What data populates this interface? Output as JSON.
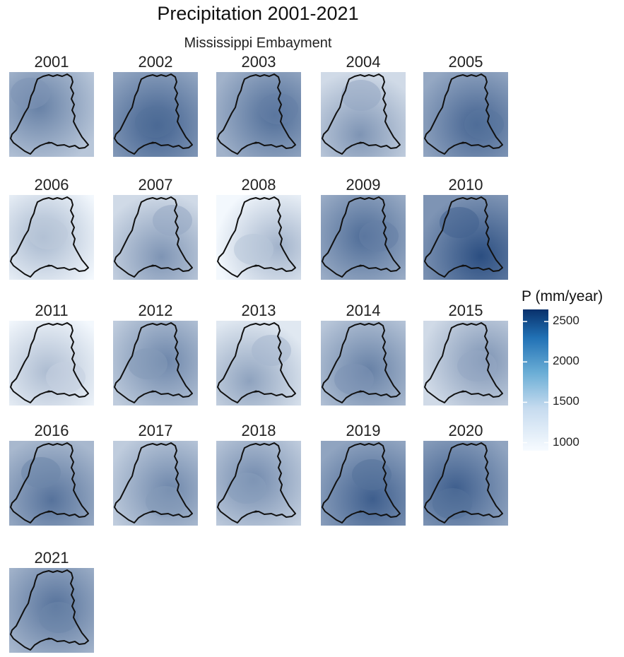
{
  "title": "Precipitation 2001-2021",
  "subtitle": "Mississippi Embayment",
  "legend": {
    "title": "P (mm/year)",
    "range": [
      900,
      2650
    ],
    "ticks": [
      {
        "label": "2500",
        "value": 2500
      },
      {
        "label": "2000",
        "value": 2000
      },
      {
        "label": "1500",
        "value": 1500
      },
      {
        "label": "1000",
        "value": 1000
      }
    ],
    "colors": {
      "low": "#f3f8fd",
      "high": "#08306b"
    }
  },
  "panels": [
    {
      "year": "2001",
      "level": 0.45
    },
    {
      "year": "2002",
      "level": 0.62
    },
    {
      "year": "2003",
      "level": 0.55
    },
    {
      "year": "2004",
      "level": 0.35
    },
    {
      "year": "2005",
      "level": 0.6
    },
    {
      "year": "2006",
      "level": 0.18
    },
    {
      "year": "2007",
      "level": 0.35
    },
    {
      "year": "2008",
      "level": 0.2
    },
    {
      "year": "2009",
      "level": 0.55
    },
    {
      "year": "2010",
      "level": 0.7
    },
    {
      "year": "2011",
      "level": 0.15
    },
    {
      "year": "2012",
      "level": 0.42
    },
    {
      "year": "2013",
      "level": 0.28
    },
    {
      "year": "2014",
      "level": 0.45
    },
    {
      "year": "2015",
      "level": 0.35
    },
    {
      "year": "2016",
      "level": 0.52
    },
    {
      "year": "2017",
      "level": 0.42
    },
    {
      "year": "2018",
      "level": 0.4
    },
    {
      "year": "2019",
      "level": 0.62
    },
    {
      "year": "2020",
      "level": 0.62
    },
    {
      "year": "2021",
      "level": 0.52
    }
  ]
}
